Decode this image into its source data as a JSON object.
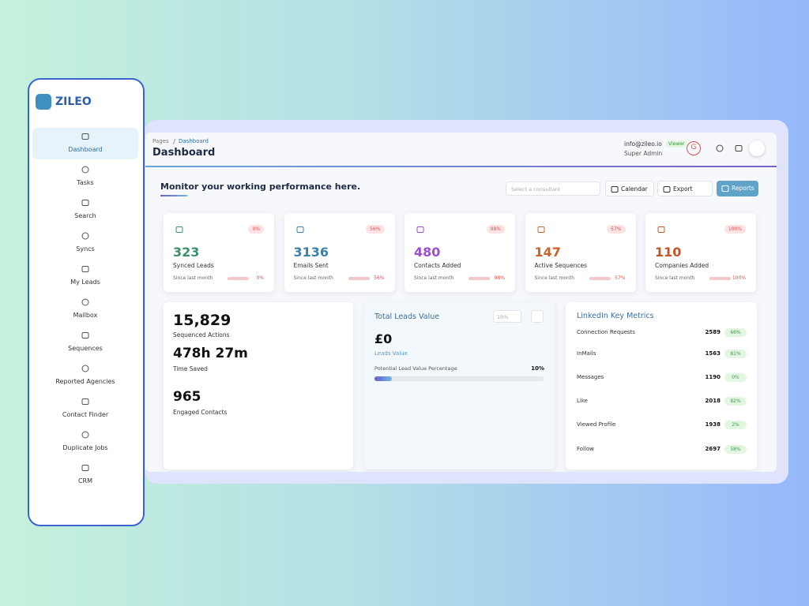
{
  "sidebar": {
    "logo": "ZILEO",
    "items": [
      "Dashboard",
      "Tasks",
      "Search",
      "Syncs",
      "My Leads",
      "Mailbox",
      "Sequences",
      "Reported Agencies",
      "Contact Finder",
      "Duplicate Jobs",
      "CRM"
    ]
  },
  "header": {
    "breadcrumb": [
      "Pages",
      "Dashboard"
    ],
    "title": "Dashboard",
    "email": "info@zileo.io",
    "badge": "Viewer",
    "role": "Super Admin",
    "avatar": "G"
  },
  "toolbar": {
    "heading": "Monitor your working performance here.",
    "search_placeholder": "Select a consultant",
    "buttons": [
      "Calendar",
      "Export",
      "Reports"
    ]
  },
  "stats": [
    {
      "value": 323,
      "label": "Synced Leads",
      "badge": "0%",
      "since": "Since last month",
      "change": "0%",
      "color": "#3f8f6b"
    },
    {
      "value": 3136,
      "label": "Emails Sent",
      "badge": "56%",
      "since": "Since last month",
      "change": "56%",
      "color": "#3f7fa8"
    },
    {
      "value": 480,
      "label": "Contacts Added",
      "badge": "98%",
      "since": "Since last month",
      "change": "98%",
      "color": "#9a4fd0"
    },
    {
      "value": 147,
      "label": "Active Sequences",
      "badge": "57%",
      "since": "Since last month",
      "change": "57%",
      "color": "#c8622c"
    },
    {
      "value": 110,
      "label": "Companies Added",
      "badge": "100%",
      "since": "Since last month",
      "change": "100%",
      "color": "#c0552c"
    }
  ],
  "summary": [
    {
      "value": "15,829",
      "label": "Sequenced Actions"
    },
    {
      "value": "478h 27m",
      "label": "Time Saved"
    },
    {
      "value": 965,
      "label": "Engaged Contacts"
    }
  ],
  "leads_value": {
    "title": "Total Leads Value",
    "input": "10%",
    "amount": "£0",
    "sub": "Leads Value",
    "progress_label": "Potential Lead Value Percentage",
    "progress_value": "10%"
  },
  "linkedin": {
    "title": "LinkedIn Key Metrics",
    "rows": [
      {
        "label": "Connection Requests",
        "value": 2589,
        "change": "66%"
      },
      {
        "label": "InMails",
        "value": 1563,
        "change": "81%"
      },
      {
        "label": "Messages",
        "value": 1190,
        "change": "0%"
      },
      {
        "label": "Like",
        "value": 2018,
        "change": "82%"
      },
      {
        "label": "Viewed Profile",
        "value": 1938,
        "change": "2%"
      },
      {
        "label": "Follow",
        "value": 2697,
        "change": "58%"
      }
    ]
  }
}
